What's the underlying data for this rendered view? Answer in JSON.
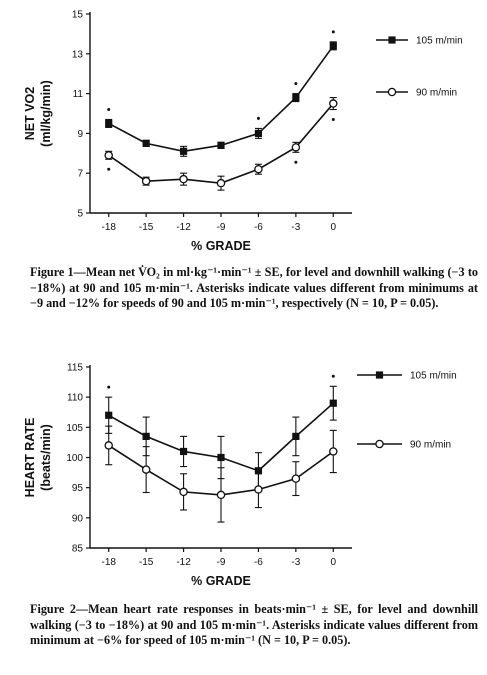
{
  "chart_data": [
    {
      "type": "line",
      "xlabel": "% GRADE",
      "ylabel": "NET VO2",
      "ylabel_unit": "(ml/kg/min)",
      "x": [
        -18,
        -15,
        -12,
        -9,
        -6,
        -3,
        0
      ],
      "xticks": [
        "-18",
        "-15",
        "-12",
        "-9",
        "-6",
        "-3",
        "0"
      ],
      "ylim": [
        5,
        15
      ],
      "yticks": [
        "5",
        "7",
        "9",
        "11",
        "13",
        "15"
      ],
      "legend_position": "right",
      "series": [
        {
          "name": "105 m/min",
          "marker": "filled-square",
          "values": [
            9.5,
            8.5,
            8.1,
            8.4,
            9.0,
            10.8,
            13.4
          ],
          "se": [
            0.2,
            0.15,
            0.25,
            0.15,
            0.25,
            0.2,
            0.2
          ],
          "asterisks": [
            -18,
            -6,
            -3,
            0
          ]
        },
        {
          "name": "90 m/min",
          "marker": "open-circle",
          "values": [
            7.9,
            6.6,
            6.7,
            6.5,
            7.2,
            8.3,
            10.5
          ],
          "se": [
            0.2,
            0.2,
            0.3,
            0.35,
            0.25,
            0.25,
            0.3
          ],
          "asterisks": [
            -18,
            -3,
            0
          ]
        }
      ],
      "caption": "Figure 1—Mean net V̇O₂ in ml·kg⁻¹·min⁻¹ ± SE, for level and downhill walking (−3 to −18%) at 90 and 105 m·min⁻¹. Asterisks indicate values different from minimums at −9 and −12% for speeds of 90 and 105 m·min⁻¹, respectively (N = 10, P = 0.05)."
    },
    {
      "type": "line",
      "xlabel": "% GRADE",
      "ylabel": "HEART RATE",
      "ylabel_unit": "(beats/min)",
      "x": [
        -18,
        -15,
        -12,
        -9,
        -6,
        -3,
        0
      ],
      "xticks": [
        "-18",
        "-15",
        "-12",
        "-9",
        "-6",
        "-3",
        "0"
      ],
      "ylim": [
        85,
        115
      ],
      "yticks": [
        "85",
        "90",
        "95",
        "100",
        "105",
        "110",
        "115"
      ],
      "legend_position": "right",
      "series": [
        {
          "name": "105 m/min",
          "marker": "filled-square",
          "values": [
            107,
            103.5,
            101,
            100,
            97.8,
            103.5,
            109
          ],
          "se": [
            3.0,
            3.2,
            2.5,
            3.5,
            3.0,
            3.2,
            2.8
          ],
          "asterisks": [
            -18,
            0
          ]
        },
        {
          "name": "90 m/min",
          "marker": "open-circle",
          "values": [
            102,
            98,
            94.3,
            93.8,
            94.7,
            96.5,
            101
          ],
          "se": [
            3.2,
            3.8,
            3.0,
            4.5,
            3.0,
            2.8,
            3.5
          ],
          "asterisks": []
        }
      ],
      "caption": "Figure 2—Mean heart rate responses in beats·min⁻¹ ± SE, for level and downhill walking (−3 to −18%) at 90 and 105 m·min⁻¹. Asterisks indicate values different from minimum at −6% for speed of 105 m·min⁻¹ (N = 10, P = 0.05)."
    }
  ]
}
